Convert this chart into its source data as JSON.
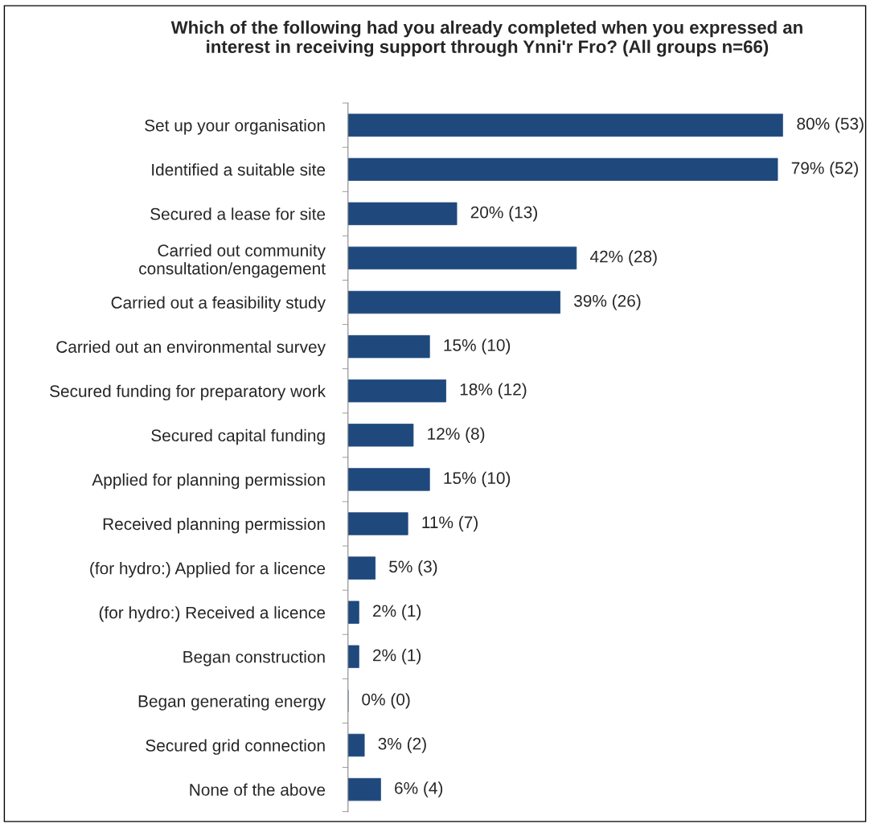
{
  "chart_data": {
    "type": "bar",
    "orientation": "horizontal",
    "title": "Which of the following had you already completed when you expressed an\ninterest in receiving support through Ynni'r Fro? (All groups n=66)",
    "categories": [
      "Set up your organisation",
      "Identified a suitable site",
      "Secured a lease for site",
      "Carried out community\nconsultation/engagement",
      "Carried out a feasibility study",
      "Carried out an environmental survey",
      "Secured funding for preparatory work",
      "Secured capital funding",
      "Applied for planning permission",
      "Received planning permission",
      "(for hydro:) Applied for a licence",
      "(for hydro:) Received a licence",
      "Began construction",
      "Began generating energy",
      "Secured grid connection",
      "None of the above"
    ],
    "values": [
      80,
      79,
      20,
      42,
      39,
      15,
      18,
      12,
      15,
      11,
      5,
      2,
      2,
      0,
      3,
      6
    ],
    "value_labels": [
      "80% (53)",
      "79% (52)",
      "20% (13)",
      "42% (28)",
      "39% (26)",
      "15% (10)",
      "18% (12)",
      "12% (8)",
      "15% (10)",
      "11% (7)",
      "5% (3)",
      "2% (1)",
      "2% (1)",
      "0% (0)",
      "3% (2)",
      "6% (4)"
    ],
    "color": "#1f497d",
    "grid": false,
    "legend": false,
    "tick_labels": "y"
  }
}
